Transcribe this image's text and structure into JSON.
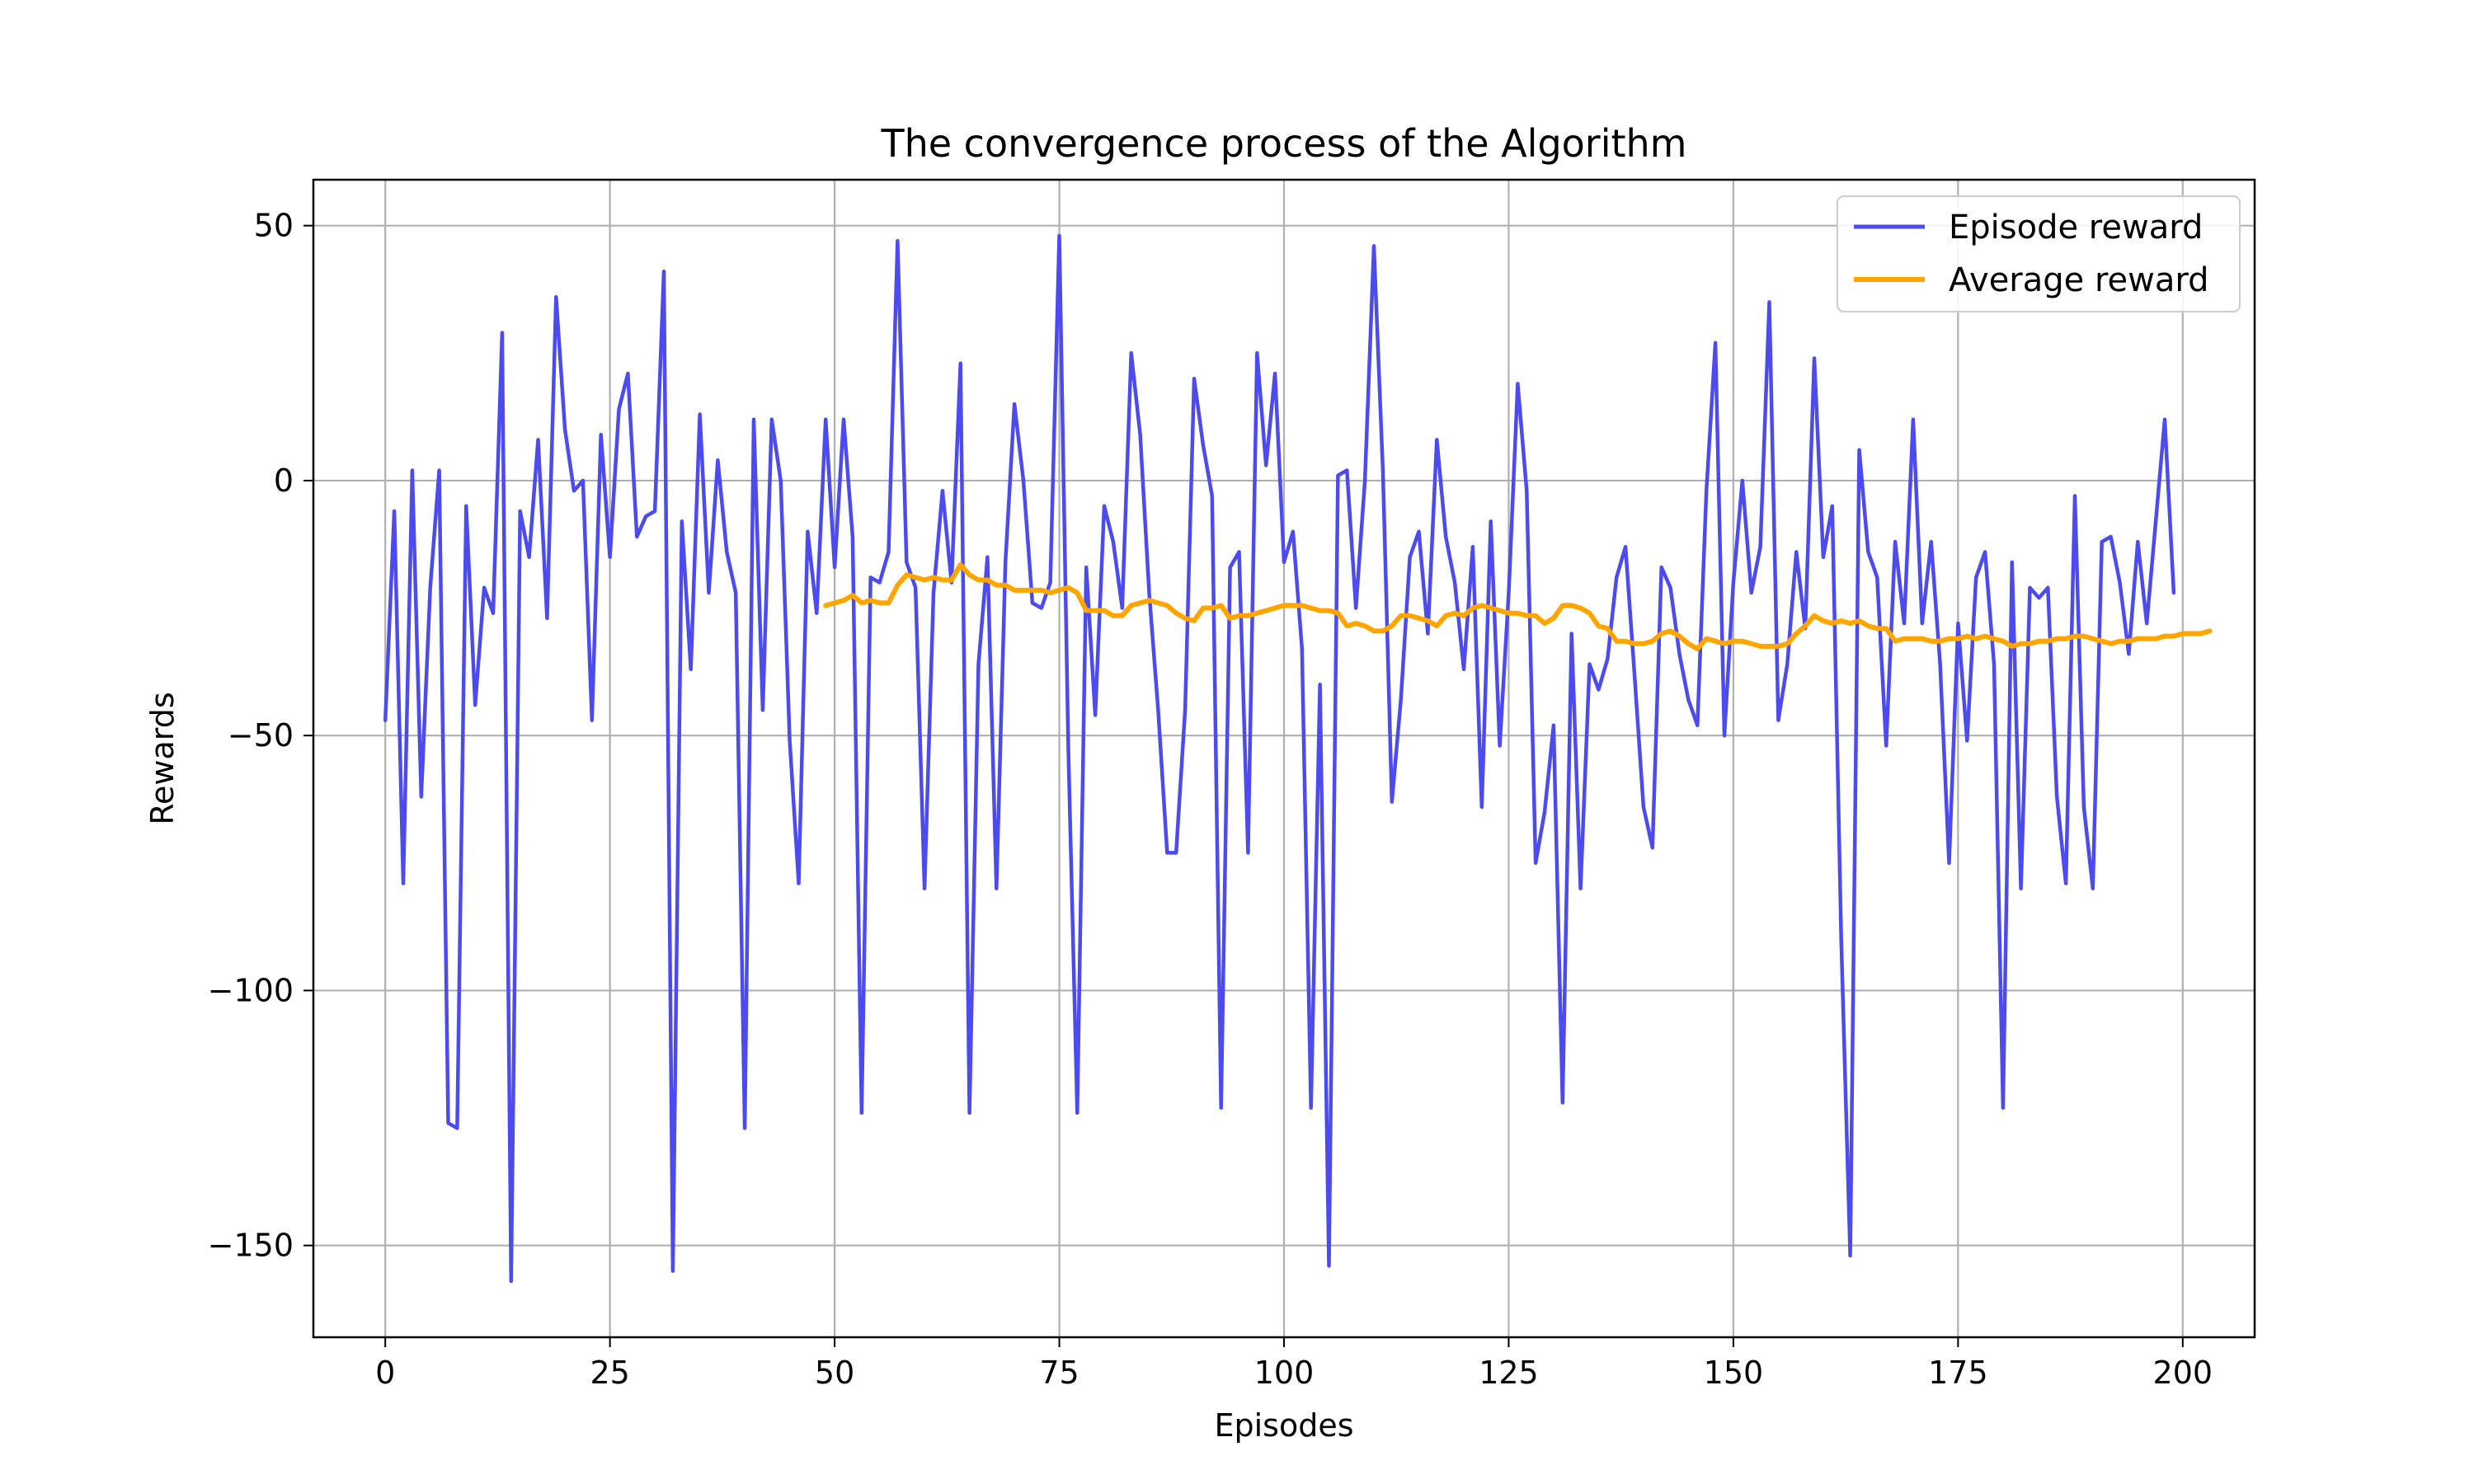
{
  "chart_data": {
    "type": "line",
    "title": "The convergence process of the Algorithm",
    "xlabel": "Episodes",
    "ylabel": "Rewards",
    "xlim": [
      -8,
      208
    ],
    "ylim": [
      -168,
      59
    ],
    "xticks": [
      0,
      25,
      50,
      75,
      100,
      125,
      150,
      175,
      200
    ],
    "yticks": [
      50,
      0,
      -50,
      -100,
      -150
    ],
    "xtick_labels": [
      "0",
      "25",
      "50",
      "75",
      "100",
      "125",
      "150",
      "175",
      "200"
    ],
    "ytick_labels": [
      "50",
      "0",
      "−50",
      "−100",
      "−150"
    ],
    "grid": true,
    "legend_position": "top-right",
    "series": [
      {
        "name": "Episode reward",
        "color": "#4b4bef",
        "x_start": 0,
        "values": [
          -47,
          -6,
          -79,
          2,
          -62,
          -21,
          2,
          -126,
          -127,
          -5,
          -44,
          -21,
          -26,
          29,
          -157,
          -6,
          -15,
          8,
          -27,
          36,
          10,
          -2,
          0,
          -47,
          9,
          -15,
          14,
          21,
          -11,
          -7,
          -6,
          41,
          -155,
          -8,
          -37,
          13,
          -22,
          4,
          -14,
          -22,
          -127,
          12,
          -45,
          12,
          0,
          -51,
          -79,
          -10,
          -26,
          12,
          -17,
          12,
          -11,
          -124,
          -19,
          -20,
          -14,
          47,
          -16,
          -21,
          -80,
          -22,
          -2,
          -20,
          23,
          -124,
          -36,
          -15,
          -80,
          -16,
          15,
          0,
          -24,
          -25,
          -20,
          48,
          -52,
          -124,
          -17,
          -46,
          -5,
          -12,
          -25,
          25,
          9,
          -22,
          -45,
          -73,
          -73,
          -45,
          20,
          7,
          -3,
          -123,
          -17,
          -14,
          -73,
          25,
          3,
          21,
          -16,
          -10,
          -33,
          -123,
          -40,
          -154,
          1,
          2,
          -25,
          0,
          46,
          2,
          -63,
          -43,
          -15,
          -10,
          -30,
          8,
          -11,
          -20,
          -37,
          -13,
          -64,
          -8,
          -52,
          -22,
          19,
          -2,
          -75,
          -65,
          -48,
          -122,
          -30,
          -80,
          -36,
          -41,
          -35,
          -19,
          -13,
          -38,
          -64,
          -72,
          -17,
          -21,
          -34,
          -43,
          -48,
          -2,
          27,
          -50,
          -20,
          0,
          -22,
          -13,
          35,
          -47,
          -36,
          -14,
          -29,
          24,
          -15,
          -5,
          -90,
          -152,
          6,
          -14,
          -19,
          -52,
          -12,
          -28,
          12,
          -28,
          -12,
          -36,
          -75,
          -28,
          -51,
          -19,
          -14,
          -36,
          -123,
          -16,
          -80,
          -21,
          -23,
          -21,
          -62,
          -79,
          -3,
          -64,
          -80,
          -12,
          -11,
          -20,
          -34,
          -12,
          -28,
          -8,
          12,
          -22
        ]
      },
      {
        "name": "Average reward",
        "color": "#ffa500",
        "x_start": 49,
        "values": [
          -24.5,
          -24,
          -23.5,
          -22.5,
          -24,
          -23.5,
          -24,
          -24,
          -20.5,
          -18.5,
          -19,
          -19.5,
          -19,
          -19.5,
          -19.5,
          -16.5,
          -18.5,
          -19.5,
          -19.5,
          -20.5,
          -20.5,
          -21.5,
          -21.5,
          -21.5,
          -21.5,
          -22,
          -21.5,
          -21,
          -22,
          -25.5,
          -25.5,
          -25.5,
          -26.5,
          -26.5,
          -24.5,
          -24,
          -23.5,
          -24,
          -24.5,
          -26,
          -27,
          -27.5,
          -25,
          -25,
          -24.5,
          -27,
          -26.5,
          -26.5,
          -26,
          -25.5,
          -25,
          -24.5,
          -24.5,
          -24.5,
          -25,
          -25.5,
          -25.5,
          -26,
          -28.5,
          -28,
          -28.5,
          -29.5,
          -29.5,
          -28.5,
          -26.5,
          -26.5,
          -27,
          -27.5,
          -28.5,
          -26.5,
          -26,
          -26.5,
          -25,
          -24.5,
          -25,
          -25.5,
          -26,
          -26,
          -26.5,
          -26.5,
          -28,
          -27,
          -24.5,
          -24.5,
          -25,
          -26,
          -28.5,
          -29,
          -31.5,
          -31.5,
          -32,
          -32,
          -31.5,
          -30,
          -29.5,
          -30.5,
          -32,
          -33,
          -31,
          -31.5,
          -32,
          -31.5,
          -31.5,
          -32,
          -32.5,
          -32.5,
          -32.5,
          -32,
          -30,
          -28.5,
          -26.5,
          -27.5,
          -28,
          -27.5,
          -28,
          -27.5,
          -28.5,
          -29,
          -29,
          -31.5,
          -31,
          -31,
          -31,
          -31.5,
          -31.5,
          -31,
          -31,
          -30.5,
          -31,
          -30.5,
          -31,
          -31.5,
          -32.5,
          -32,
          -32,
          -31.5,
          -31.5,
          -31,
          -31,
          -30.5,
          -30.5,
          -31,
          -31.5,
          -32,
          -31.5,
          -31.5,
          -31,
          -31,
          -31,
          -30.5,
          -30.5,
          -30,
          -30,
          -30,
          -29.5
        ]
      }
    ]
  }
}
